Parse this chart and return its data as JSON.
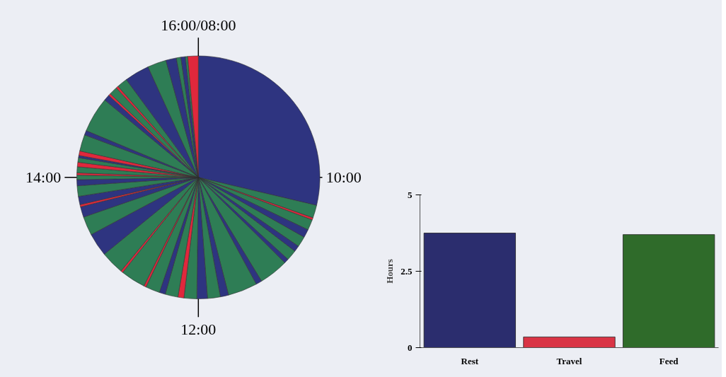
{
  "chart_data": [
    {
      "type": "pie",
      "categories": [
        null,
        null,
        null,
        null,
        null,
        null,
        null,
        null,
        null,
        null,
        null,
        null,
        null,
        null,
        null,
        null,
        null,
        null,
        null,
        null,
        null,
        null,
        null,
        null,
        null,
        null,
        null,
        null,
        null,
        null,
        null,
        null,
        null,
        null,
        null,
        null,
        null,
        null,
        null,
        null,
        null,
        null,
        null,
        null,
        null,
        null,
        null,
        null,
        null,
        null,
        null,
        null,
        null
      ],
      "values": [
        28.7,
        1.7,
        0.3,
        1.4,
        1.1,
        1.4,
        0.8,
        1.4,
        0.6,
        3.9,
        0.8,
        3.9,
        1.1,
        1.7,
        1.4,
        1.7,
        0.8,
        1.7,
        0.8,
        1.9,
        0.3,
        3.3,
        0.3,
        3.1,
        3.1,
        2.5,
        1.4,
        0.3,
        1.1,
        1.4,
        0.8,
        0.6,
        0.3,
        0.8,
        0.6,
        0.6,
        0.3,
        0.6,
        2.2,
        0.6,
        4.7,
        0.8,
        0.3,
        1.1,
        0.3,
        1.4,
        3.3,
        2.5,
        1.4,
        0.6,
        0.6,
        0.3,
        1.4
      ],
      "colors": [
        "#2e3480",
        "#2e7d55",
        "#e0283c",
        "#2e7d55",
        "#2e3480",
        "#2e7d55",
        "#2e3480",
        "#2e7d55",
        "#2e3480",
        "#2e7d55",
        "#2e3480",
        "#2e7d55",
        "#2e3480",
        "#2e7d55",
        "#2e3480",
        "#2e7d55",
        "#e0283c",
        "#2e7d55",
        "#2e3480",
        "#2e7d55",
        "#e0283c",
        "#2e7d55",
        "#e0283c",
        "#2e7d55",
        "#2e3480",
        "#2e7d55",
        "#2e3480",
        "#e0283c",
        "#2e3480",
        "#2e7d55",
        "#2e3480",
        "#2e7d55",
        "#e0283c",
        "#2e7d55",
        "#e0283c",
        "#2e7d55",
        "#2e3480",
        "#e0283c",
        "#2e7d55",
        "#2e3480",
        "#2e7d55",
        "#2e3480",
        "#e0283c",
        "#2e7d55",
        "#e0283c",
        "#2e7d55",
        "#2e3480",
        "#2e7d55",
        "#2e3480",
        "#2e7d55",
        "#2e3480",
        "#2e7d55",
        "#e0283c"
      ],
      "annotations": [
        "16:00/08:00",
        "10:00",
        "12:00",
        "14:00"
      ]
    },
    {
      "type": "bar",
      "categories": [
        "Rest",
        "Travel",
        "Feed"
      ],
      "values": [
        3.75,
        0.35,
        3.7
      ],
      "colors": [
        "#2b2d6e",
        "#d93445",
        "#2f6b2a"
      ],
      "ylabel": "Hours",
      "ylim": [
        0,
        5
      ],
      "yticks": [
        0,
        2.5,
        5
      ]
    }
  ]
}
